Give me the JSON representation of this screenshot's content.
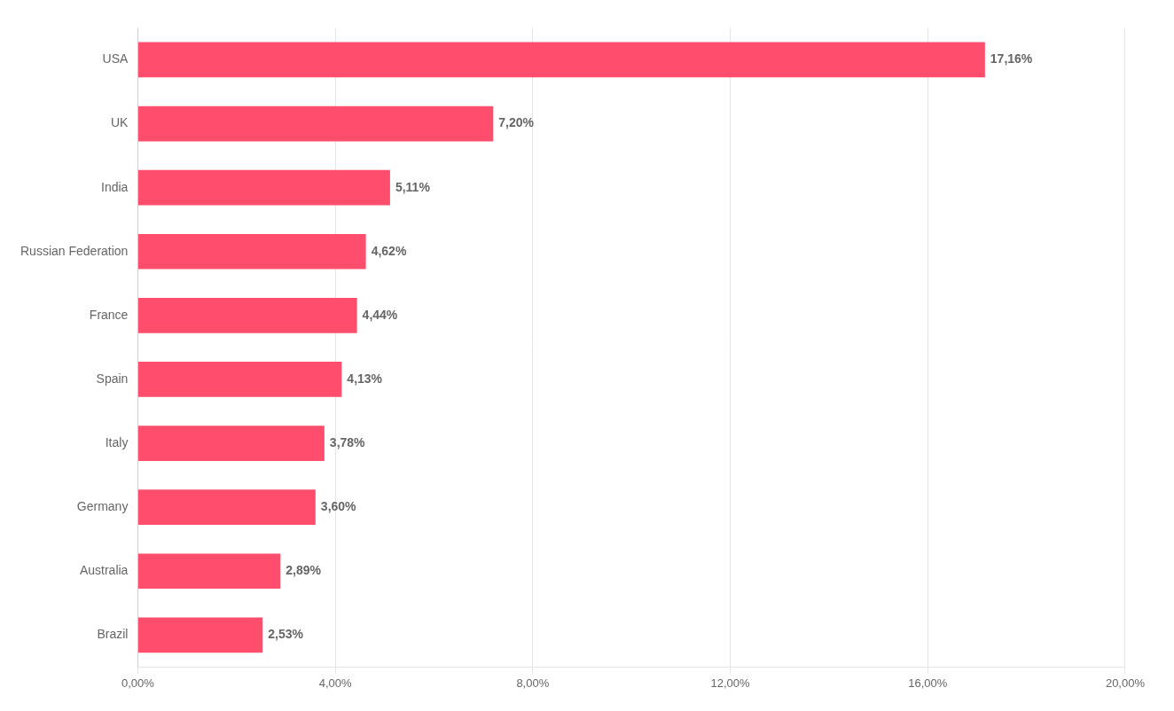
{
  "chart_data": {
    "type": "bar",
    "orientation": "horizontal",
    "categories": [
      "Brazil",
      "Australia",
      "Germany",
      "Italy",
      "Spain",
      "France",
      "Russian Federation",
      "India",
      "UK",
      "USA"
    ],
    "values": [
      2.53,
      2.89,
      3.6,
      3.78,
      4.13,
      4.44,
      4.62,
      5.11,
      7.2,
      17.16
    ],
    "value_labels": [
      "2,53%",
      "2,89%",
      "3,60%",
      "3,78%",
      "4,13%",
      "4,44%",
      "4,62%",
      "5,11%",
      "7,20%",
      "17,16%"
    ],
    "data_labels": true,
    "color": "#FF4D6D",
    "xlim": [
      0,
      20
    ],
    "xticks": [
      {
        "value": 0,
        "label": "0,00%"
      },
      {
        "value": 4,
        "label": "4,00%"
      },
      {
        "value": 8,
        "label": "8,00%"
      },
      {
        "value": 12,
        "label": "12,00%"
      },
      {
        "value": 16,
        "label": "16,00%"
      },
      {
        "value": 20,
        "label": "20,00%"
      }
    ],
    "grid": true
  }
}
